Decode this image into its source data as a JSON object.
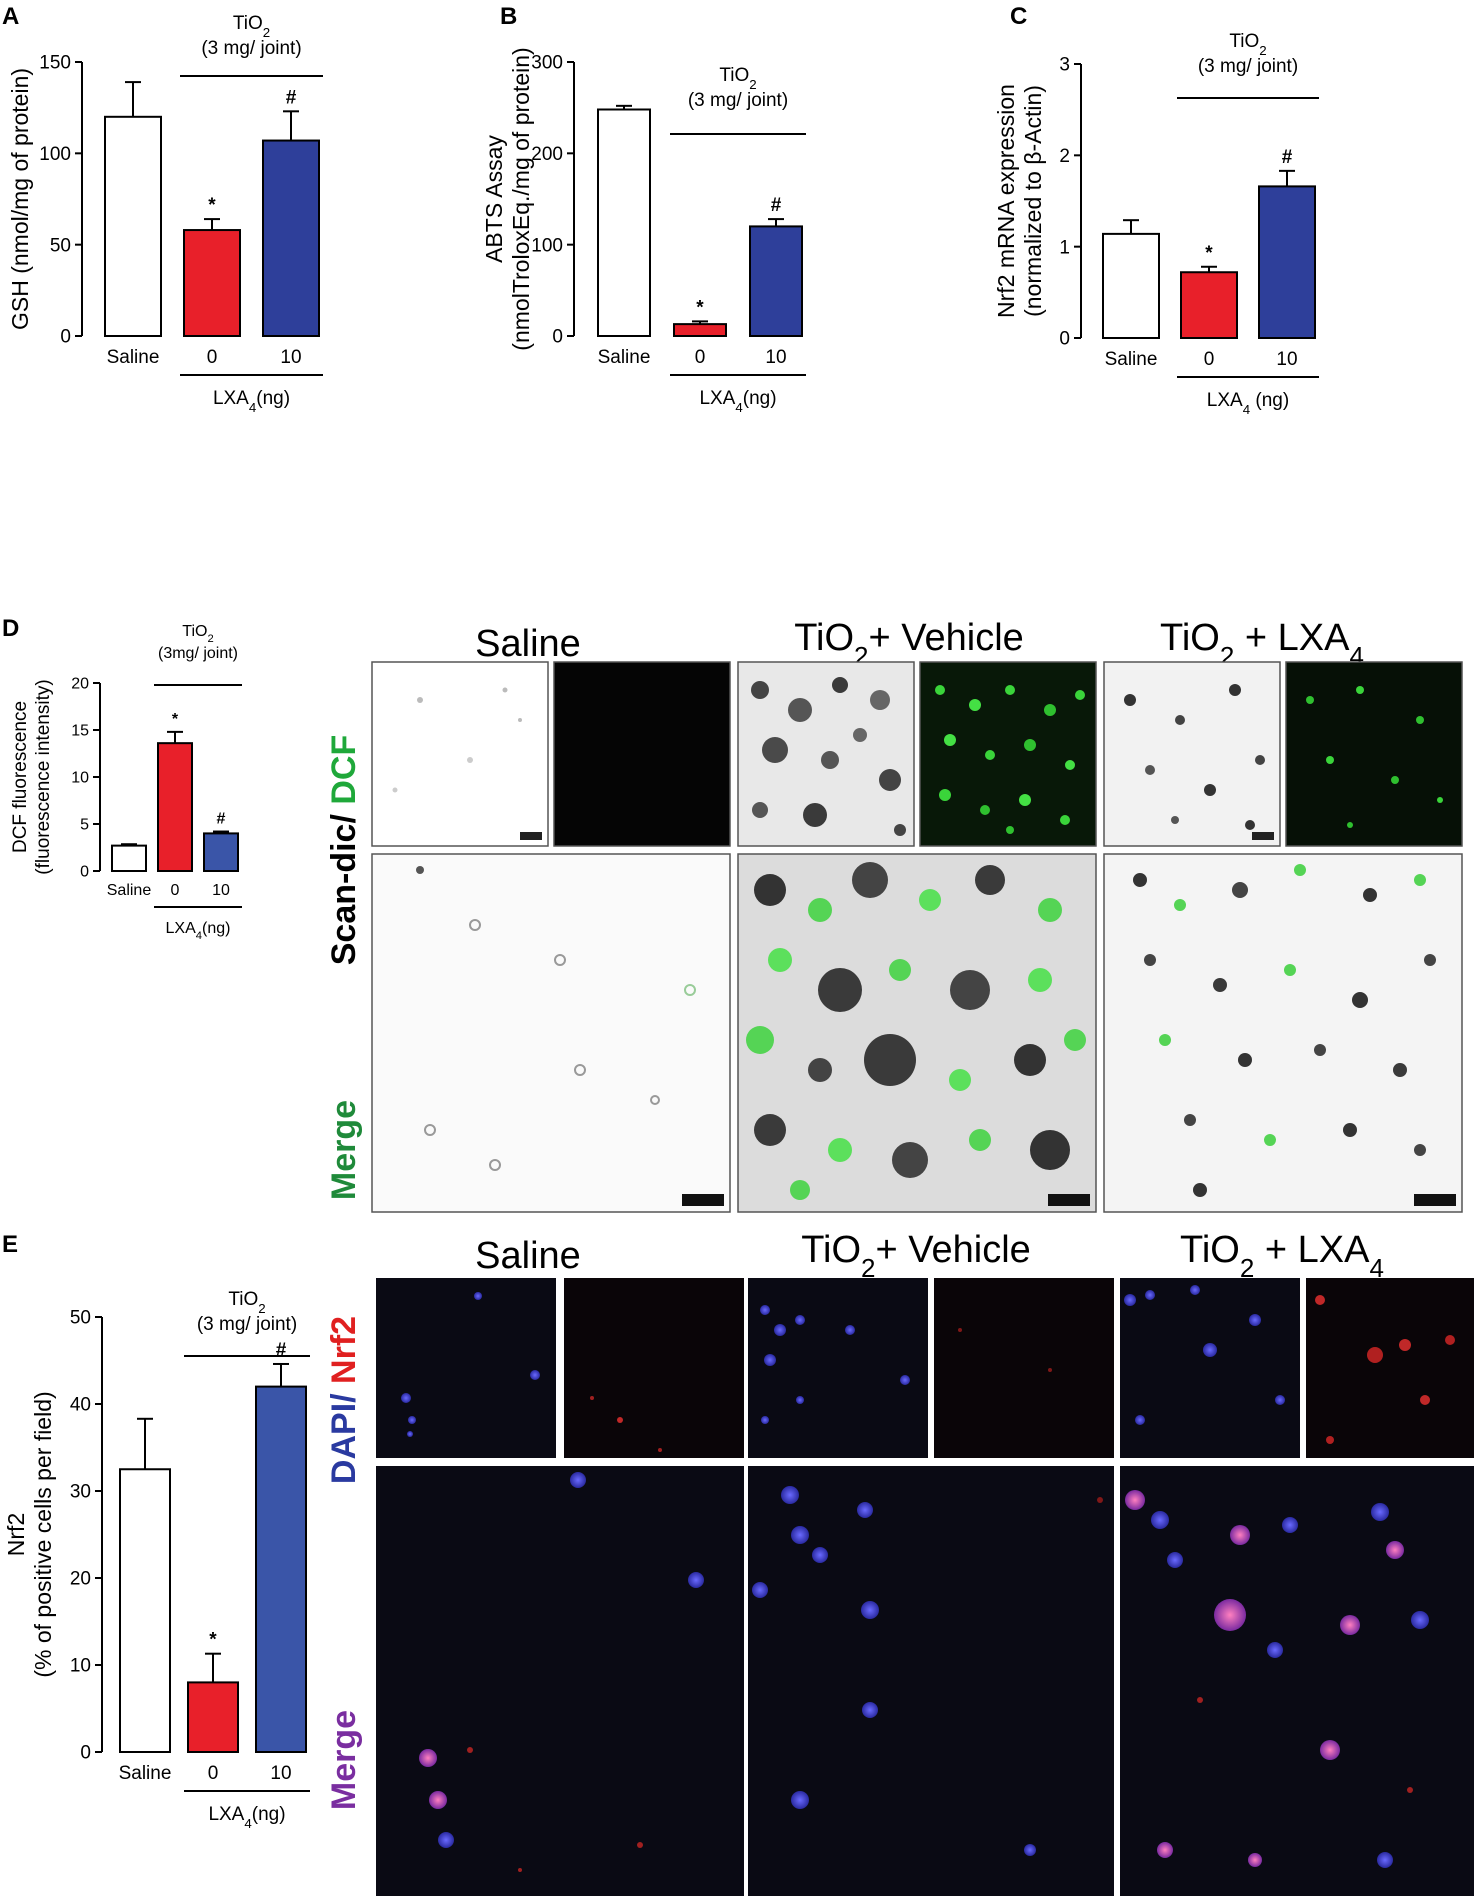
{
  "panel_letters": [
    "A",
    "B",
    "C",
    "D",
    "E"
  ],
  "chart_data": [
    {
      "type": "bar",
      "panel": "A",
      "categories": [
        "Saline",
        "0",
        "10"
      ],
      "values": [
        120,
        58,
        107
      ],
      "errors": [
        19,
        6,
        16
      ],
      "significance": [
        "",
        "*",
        "#"
      ],
      "colors": [
        "#ffffff",
        "#e8202a",
        "#2e3f9a"
      ],
      "ylabel": "GSH (nmol/mg of protein)",
      "yticks": [
        0,
        50,
        100,
        150
      ],
      "ylim": [
        0,
        150
      ],
      "bracket_label_1": "TiO",
      "bracket_label_1_sub": "2",
      "bracket_label_2": "(3 mg/ joint)",
      "group_label": "LXA",
      "group_label_sub": "4",
      "group_label_suffix": "(ng)"
    },
    {
      "type": "bar",
      "panel": "B",
      "categories": [
        "Saline",
        "0",
        "10"
      ],
      "values": [
        248,
        13,
        120
      ],
      "errors": [
        4,
        3,
        8
      ],
      "significance": [
        "",
        "*",
        "#"
      ],
      "colors": [
        "#ffffff",
        "#e8202a",
        "#2e3f9a"
      ],
      "ylabel_line1": "ABTS Assay",
      "ylabel_line2": "(nmolTroloxEq./mg of protein)",
      "yticks": [
        0,
        100,
        200,
        300
      ],
      "ylim": [
        0,
        300
      ],
      "bracket_label_1": "TiO",
      "bracket_label_1_sub": "2",
      "bracket_label_2": "(3 mg/ joint)",
      "group_label": "LXA",
      "group_label_sub": "4",
      "group_label_suffix": "(ng)"
    },
    {
      "type": "bar",
      "panel": "C",
      "categories": [
        "Saline",
        "0",
        "10"
      ],
      "values": [
        1.14,
        0.72,
        1.66
      ],
      "errors": [
        0.15,
        0.06,
        0.17
      ],
      "significance": [
        "",
        "*",
        "#"
      ],
      "colors": [
        "#ffffff",
        "#e8202a",
        "#2e3f9a"
      ],
      "ylabel_line1": "Nrf2 mRNA expression",
      "ylabel_line2": "(normalized to  β-Actin)",
      "yticks": [
        0,
        1,
        2,
        3
      ],
      "ylim": [
        0,
        3
      ],
      "bracket_label_1": "TiO",
      "bracket_label_1_sub": "2",
      "bracket_label_2": "(3 mg/ joint)",
      "group_label": "LXA",
      "group_label_sub": "4",
      "group_label_suffix": " (ng)"
    },
    {
      "type": "bar",
      "panel": "D",
      "categories": [
        "Saline",
        "0",
        "10"
      ],
      "values": [
        2.7,
        13.6,
        4.0
      ],
      "errors": [
        0.15,
        1.2,
        0.2
      ],
      "significance": [
        "",
        "*",
        "#"
      ],
      "colors": [
        "#ffffff",
        "#e8202a",
        "#3a55a8"
      ],
      "ylabel_line1": "DCF fluorescence",
      "ylabel_line2": "(fluorescence intensity)",
      "yticks": [
        0,
        5,
        10,
        15,
        20
      ],
      "ylim": [
        0,
        20
      ],
      "bracket_label_1": "TiO",
      "bracket_label_1_sub": "2",
      "bracket_label_2": "(3mg/ joint)",
      "group_label": "LXA",
      "group_label_sub": "4",
      "group_label_suffix": "(ng)"
    },
    {
      "type": "bar",
      "panel": "E",
      "categories": [
        "Saline",
        "0",
        "10"
      ],
      "values": [
        32.5,
        8.0,
        42.0
      ],
      "errors": [
        5.8,
        3.3,
        2.6
      ],
      "significance": [
        "",
        "*",
        "#"
      ],
      "colors": [
        "#ffffff",
        "#e8202a",
        "#3a55a8"
      ],
      "ylabel_line1": "Nrf2",
      "ylabel_line2": "(% of positive cells per field)",
      "yticks": [
        0,
        10,
        20,
        30,
        40,
        50
      ],
      "ylim": [
        0,
        50
      ],
      "bracket_label_1": "TiO",
      "bracket_label_1_sub": "2",
      "bracket_label_2": "(3 mg/ joint)",
      "group_label": "LXA",
      "group_label_sub": "4",
      "group_label_suffix": "(ng)"
    }
  ],
  "micrographs_d": {
    "col1": "Saline",
    "col2_a": "TiO",
    "col2_sub": "2",
    "col2_b": "+ Vehicle",
    "col3_a": "TiO",
    "col3_sub": "2",
    "col3_b": " + LXA",
    "col3_sub2": "4",
    "row1_a": "Scan-dic/ ",
    "row1_b": "DCF",
    "row2": "Merge",
    "row1_b_color": "#1fa83a",
    "row2_color": "#1f8a3a"
  },
  "micrographs_e": {
    "col1": "Saline",
    "col2_a": "TiO",
    "col2_sub": "2",
    "col2_b": "+ Vehicle",
    "col3_a": "TiO",
    "col3_sub": "2",
    "col3_b": " + LXA",
    "col3_sub2": "4",
    "row1_a": "DAPI/ ",
    "row1_b": "Nrf2",
    "row2": "Merge",
    "row1_a_color": "#2a3aa0",
    "row1_b_color": "#e02020",
    "row2_color": "#7a2ea0"
  }
}
